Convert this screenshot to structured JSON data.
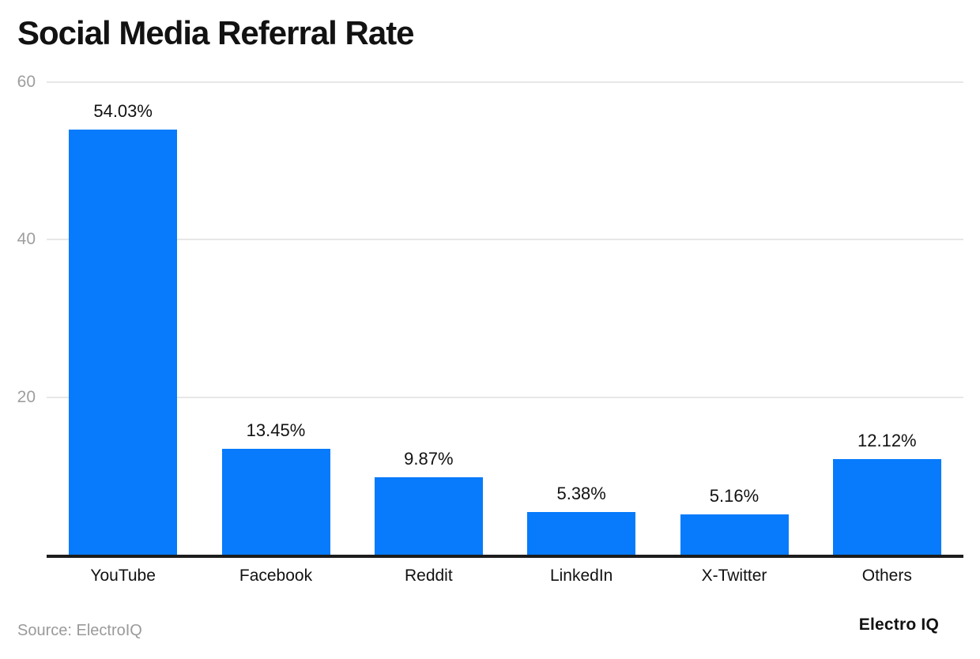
{
  "title": "Social Media Referral Rate",
  "source_note": "Source: ElectroIQ",
  "brand": "Electro IQ",
  "chart_data": {
    "type": "bar",
    "title": "Social Media Referral Rate",
    "categories": [
      "YouTube",
      "Facebook",
      "Reddit",
      "LinkedIn",
      "X-Twitter",
      "Others"
    ],
    "values": [
      54.03,
      13.45,
      9.87,
      5.38,
      5.16,
      12.12
    ],
    "value_labels": [
      "54.03%",
      "13.45%",
      "9.87%",
      "5.38%",
      "5.16%",
      "12.12%"
    ],
    "xlabel": "",
    "ylabel": "",
    "ylim": [
      0,
      60
    ],
    "yticks": [
      20,
      40,
      60
    ],
    "grid": true,
    "legend": "none",
    "bar_color": "#077BFB"
  },
  "colors": {
    "bar": "#077BFB",
    "grid_line": "#e7e7e7",
    "tick_label": "#9e9e9e",
    "axis_line": "#1c1c1c",
    "text": "#121212",
    "source": "#9a9a9a",
    "background": "#ffffff"
  }
}
